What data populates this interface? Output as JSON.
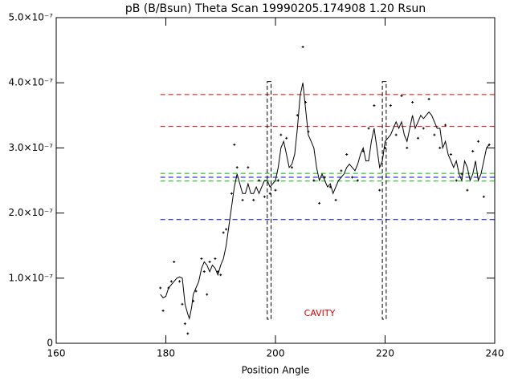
{
  "chart_data": {
    "type": "scatter-line",
    "title": "pB (B/Bsun) Theta Scan 19990205.174908 1.20 Rsun",
    "x_label": "Position Angle",
    "annotation": {
      "text": "CAVITY",
      "color": "#e00000"
    },
    "xlim": [
      160,
      240
    ],
    "xticks": [
      160,
      180,
      200,
      220,
      240
    ],
    "ylim": [
      0,
      5e-07
    ],
    "yticks": [
      0,
      {
        "value": 1e-07,
        "label": "1.0×10⁻⁷"
      },
      {
        "value": 2e-07,
        "label": "2.0×10⁻⁷"
      },
      {
        "value": 3e-07,
        "label": "3.0×10⁻⁷"
      },
      {
        "value": 4e-07,
        "label": "4.0×10⁻⁷"
      },
      {
        "value": 5e-07,
        "label": "5.0×10⁻⁷"
      }
    ],
    "hlines": [
      {
        "value": 3.82e-07,
        "color": "#e00000"
      },
      {
        "value": 3.33e-07,
        "color": "#e00000"
      },
      {
        "value": 2.61e-07,
        "color": "#00c000"
      },
      {
        "value": 2.55e-07,
        "color": "#0000e0"
      },
      {
        "value": 2.49e-07,
        "color": "#00c000"
      },
      {
        "value": 1.9e-07,
        "color": "#0000e0"
      }
    ],
    "boxes": [
      {
        "x": [
          198.5,
          199.2
        ],
        "y": [
          3.7e-08,
          4.02e-07
        ]
      },
      {
        "x": [
          219.5,
          220.2
        ],
        "y": [
          3.7e-08,
          4.02e-07
        ]
      }
    ],
    "line": {
      "color": "#000000",
      "x": [
        179,
        179.5,
        180,
        180.5,
        181,
        181.5,
        182,
        182.5,
        183,
        183.5,
        184,
        184.3,
        184.7,
        185,
        185.5,
        186,
        186.5,
        187,
        187.5,
        188,
        188.5,
        189,
        189.5,
        190,
        190.5,
        191,
        191.5,
        192,
        192.5,
        193,
        193.5,
        194,
        194.5,
        195,
        195.5,
        196,
        196.5,
        197,
        197.5,
        198,
        198.5,
        199,
        199.5,
        200,
        200.5,
        201,
        201.5,
        202,
        202.5,
        203,
        203.5,
        204,
        204.5,
        205,
        205.5,
        206,
        206.5,
        207,
        207.5,
        208,
        208.5,
        209,
        209.5,
        210,
        210.5,
        211,
        211.5,
        212,
        212.5,
        213,
        213.5,
        214,
        214.5,
        215,
        215.5,
        216,
        216.5,
        217,
        217.5,
        218,
        218.5,
        219,
        219.5,
        220,
        220.5,
        221,
        221.5,
        222,
        222.5,
        223,
        223.5,
        224,
        224.5,
        225,
        225.5,
        226,
        226.5,
        227,
        227.5,
        228,
        228.5,
        229,
        229.5,
        230,
        230.5,
        231,
        231.5,
        232,
        232.5,
        233,
        233.5,
        234,
        234.5,
        235,
        235.5,
        236,
        236.5,
        237,
        237.5,
        238,
        238.5,
        239
      ],
      "values": [
        7.5e-08,
        7e-08,
        7.2e-08,
        8.5e-08,
        9e-08,
        9.5e-08,
        1e-07,
        1.02e-07,
        1e-07,
        6e-08,
        4.5e-08,
        3.8e-08,
        5.5e-08,
        7.5e-08,
        8.5e-08,
        9.5e-08,
        1.15e-07,
        1.25e-07,
        1.2e-07,
        1.1e-07,
        1.2e-07,
        1.15e-07,
        1.05e-07,
        1.2e-07,
        1.3e-07,
        1.5e-07,
        1.8e-07,
        2.1e-07,
        2.4e-07,
        2.6e-07,
        2.45e-07,
        2.3e-07,
        2.3e-07,
        2.45e-07,
        2.3e-07,
        2.3e-07,
        2.4e-07,
        2.3e-07,
        2.4e-07,
        2.5e-07,
        2.5e-07,
        2.4e-07,
        2.45e-07,
        2.5e-07,
        2.7e-07,
        3e-07,
        3.1e-07,
        2.9e-07,
        2.7e-07,
        2.75e-07,
        2.9e-07,
        3.3e-07,
        3.8e-07,
        4e-07,
        3.6e-07,
        3.2e-07,
        3.1e-07,
        3e-07,
        2.7e-07,
        2.5e-07,
        2.6e-07,
        2.5e-07,
        2.4e-07,
        2.45e-07,
        2.3e-07,
        2.4e-07,
        2.5e-07,
        2.55e-07,
        2.6e-07,
        2.7e-07,
        2.75e-07,
        2.7e-07,
        2.65e-07,
        2.75e-07,
        2.9e-07,
        3e-07,
        2.8e-07,
        2.8e-07,
        3.1e-07,
        3.3e-07,
        3e-07,
        2.7e-07,
        2.8e-07,
        3.1e-07,
        3.15e-07,
        3.2e-07,
        3.3e-07,
        3.4e-07,
        3.3e-07,
        3.4e-07,
        3.2e-07,
        3.1e-07,
        3.3e-07,
        3.5e-07,
        3.3e-07,
        3.4e-07,
        3.5e-07,
        3.45e-07,
        3.5e-07,
        3.55e-07,
        3.5e-07,
        3.4e-07,
        3.3e-07,
        3.3e-07,
        3e-07,
        3.1e-07,
        2.9e-07,
        2.8e-07,
        2.7e-07,
        2.8e-07,
        2.6e-07,
        2.5e-07,
        2.8e-07,
        2.7e-07,
        2.5e-07,
        2.6e-07,
        2.8e-07,
        2.5e-07,
        2.6e-07,
        2.8e-07,
        3e-07,
        3.05e-07
      ]
    },
    "points": {
      "color": "#000000",
      "x": [
        179,
        179.5,
        180.5,
        181,
        181.5,
        182.5,
        183,
        183.5,
        184,
        185,
        185.5,
        186.5,
        187,
        187.5,
        188,
        189,
        189.5,
        190,
        190.5,
        191,
        192,
        192.5,
        193,
        194,
        195,
        196,
        197,
        198,
        199,
        200,
        200.5,
        201,
        202,
        203,
        204,
        205,
        205.5,
        206,
        207,
        208,
        209,
        210,
        211,
        212,
        213,
        214,
        215,
        216,
        217,
        218,
        219,
        220,
        221,
        222,
        223,
        224,
        225,
        226,
        227,
        228,
        229,
        230,
        231,
        232,
        233,
        234,
        235,
        236,
        237,
        238,
        239
      ],
      "values": [
        8.5e-08,
        5e-08,
        8.5e-08,
        9.5e-08,
        1.25e-07,
        9.5e-08,
        6e-08,
        3e-08,
        1.5e-08,
        6.5e-08,
        8e-08,
        1.3e-07,
        1.1e-07,
        7.5e-08,
        1.25e-07,
        1.3e-07,
        1.1e-07,
        1.05e-07,
        1.7e-07,
        1.75e-07,
        2.3e-07,
        3.05e-07,
        2.7e-07,
        2.2e-07,
        2.7e-07,
        2.2e-07,
        2.5e-07,
        2.25e-07,
        2.3e-07,
        2.35e-07,
        2.5e-07,
        3.2e-07,
        3.15e-07,
        2.7e-07,
        3.5e-07,
        4.55e-07,
        3.7e-07,
        3.25e-07,
        2.5e-07,
        2.15e-07,
        2.55e-07,
        2.4e-07,
        2.2e-07,
        2.65e-07,
        2.9e-07,
        2.55e-07,
        2.5e-07,
        2.95e-07,
        3.3e-07,
        3.65e-07,
        2.35e-07,
        3e-07,
        3.65e-07,
        3.2e-07,
        3.8e-07,
        3e-07,
        3.7e-07,
        3.15e-07,
        3.3e-07,
        3.75e-07,
        3.2e-07,
        3e-07,
        3.35e-07,
        2.9e-07,
        2.5e-07,
        2.6e-07,
        2.35e-07,
        2.95e-07,
        3.1e-07,
        2.25e-07,
        3.05e-07
      ]
    }
  }
}
